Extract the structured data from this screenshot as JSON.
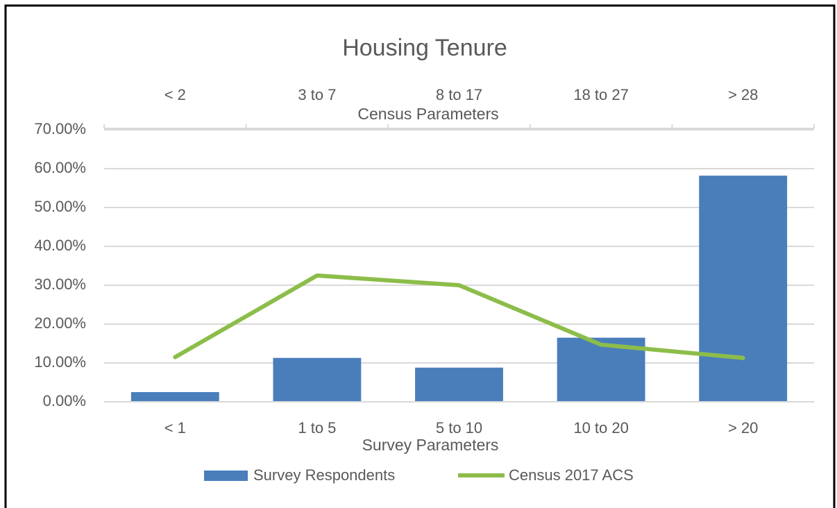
{
  "chart_data": {
    "type": "bar",
    "title": "Housing Tenure",
    "xlabel": "Survey Parameters",
    "x2label": "Census Parameters",
    "categories": [
      "< 1",
      "1 to 5",
      "5 to 10",
      "10 to 20",
      "> 20"
    ],
    "x2_categories": [
      "< 2",
      "3 to 7",
      "8  to 17",
      "18 to 27",
      "> 28"
    ],
    "series": [
      {
        "name": "Survey Respondents",
        "type": "bar",
        "color": "#4a7ebb",
        "values": [
          2.5,
          11.3,
          8.8,
          16.5,
          58.2
        ]
      },
      {
        "name": "Census 2017 ACS",
        "type": "line",
        "color": "#8cbd4a",
        "values": [
          11.5,
          32.5,
          30.0,
          14.7,
          11.3
        ]
      }
    ],
    "ylim": [
      0,
      70
    ],
    "yticks": [
      {
        "value": 0,
        "label": "0.00%"
      },
      {
        "value": 10,
        "label": "10.00%"
      },
      {
        "value": 20,
        "label": "20.00%"
      },
      {
        "value": 30,
        "label": "30.00%"
      },
      {
        "value": 40,
        "label": "40.00%"
      },
      {
        "value": 50,
        "label": "50.00%"
      },
      {
        "value": 60,
        "label": "60.00%"
      },
      {
        "value": 70,
        "label": "70.00%"
      }
    ],
    "grid": true,
    "legend": "bottom"
  }
}
